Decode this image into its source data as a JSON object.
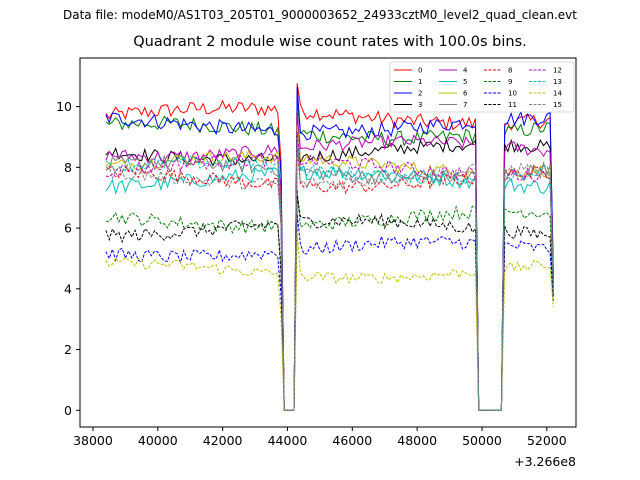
{
  "figure": {
    "suptitle": "Data file: modeM0/AS1T03_205T01_9000003652_24933cztM0_level2_quad_clean.evt"
  },
  "chart_data": {
    "type": "line",
    "title": "Quadrant 2 module wise count rates with 100.0s bins.",
    "xlabel": "",
    "ylabel": "",
    "x_offset_label": "+3.266e8",
    "xlim": [
      37600,
      52900
    ],
    "ylim": [
      -0.55,
      11.6
    ],
    "xticks": [
      38000,
      40000,
      42000,
      44000,
      46000,
      48000,
      50000,
      52000
    ],
    "xtick_labels": [
      "38000",
      "40000",
      "42000",
      "44000",
      "46000",
      "48000",
      "50000",
      "52000"
    ],
    "yticks": [
      0,
      2,
      4,
      6,
      8,
      10
    ],
    "ytick_labels": [
      "0",
      "2",
      "4",
      "6",
      "8",
      "10"
    ],
    "time_range": [
      38400,
      52200
    ],
    "bin_size": 100,
    "gaps": [
      [
        43900,
        44200
      ],
      [
        49900,
        50600
      ]
    ],
    "series": [
      {
        "name": "0",
        "color": "#ff0000",
        "style": "solid",
        "mean": 9.7,
        "noise": 0.25,
        "end": 4.6
      },
      {
        "name": "1",
        "color": "#008000",
        "style": "solid",
        "mean": 9.2,
        "noise": 0.25,
        "end": 4.4
      },
      {
        "name": "2",
        "color": "#0000ff",
        "style": "solid",
        "mean": 9.4,
        "noise": 0.25,
        "end": 4.5
      },
      {
        "name": "3",
        "color": "#000000",
        "style": "solid",
        "mean": 8.5,
        "noise": 0.22,
        "end": 4.3
      },
      {
        "name": "4",
        "color": "#bf00bf",
        "style": "solid",
        "mean": 8.6,
        "noise": 0.22,
        "end": 4.3
      },
      {
        "name": "5",
        "color": "#00bfbf",
        "style": "solid",
        "mean": 7.6,
        "noise": 0.25,
        "end": 4.0
      },
      {
        "name": "6",
        "color": "#bfbf00",
        "style": "solid",
        "mean": 8.1,
        "noise": 0.22,
        "end": 4.1
      },
      {
        "name": "7",
        "color": "#808080",
        "style": "solid",
        "mean": 7.9,
        "noise": 0.25,
        "end": 4.1
      },
      {
        "name": "8",
        "color": "#ff0000",
        "style": "dashed",
        "mean": 7.6,
        "noise": 0.22,
        "end": 4.0
      },
      {
        "name": "9",
        "color": "#008000",
        "style": "dashed",
        "mean": 6.3,
        "noise": 0.22,
        "end": 3.8
      },
      {
        "name": "10",
        "color": "#0000ff",
        "style": "dashed",
        "mean": 5.3,
        "noise": 0.22,
        "end": 3.6
      },
      {
        "name": "11",
        "color": "#000000",
        "style": "dashed",
        "mean": 6.0,
        "noise": 0.22,
        "end": 3.7
      },
      {
        "name": "12",
        "color": "#bf00bf",
        "style": "dashed",
        "mean": 8.0,
        "noise": 0.22,
        "end": 4.1
      },
      {
        "name": "13",
        "color": "#00bfbf",
        "style": "dashed",
        "mean": 7.9,
        "noise": 0.22,
        "end": 4.0
      },
      {
        "name": "14",
        "color": "#bfbf00",
        "style": "dashed",
        "mean": 4.6,
        "noise": 0.18,
        "end": 3.4
      },
      {
        "name": "15",
        "color": "#808080",
        "style": "dashed",
        "mean": 7.7,
        "noise": 0.22,
        "end": 4.0
      }
    ],
    "legend_location": "top-right",
    "legend_columns": 4
  }
}
